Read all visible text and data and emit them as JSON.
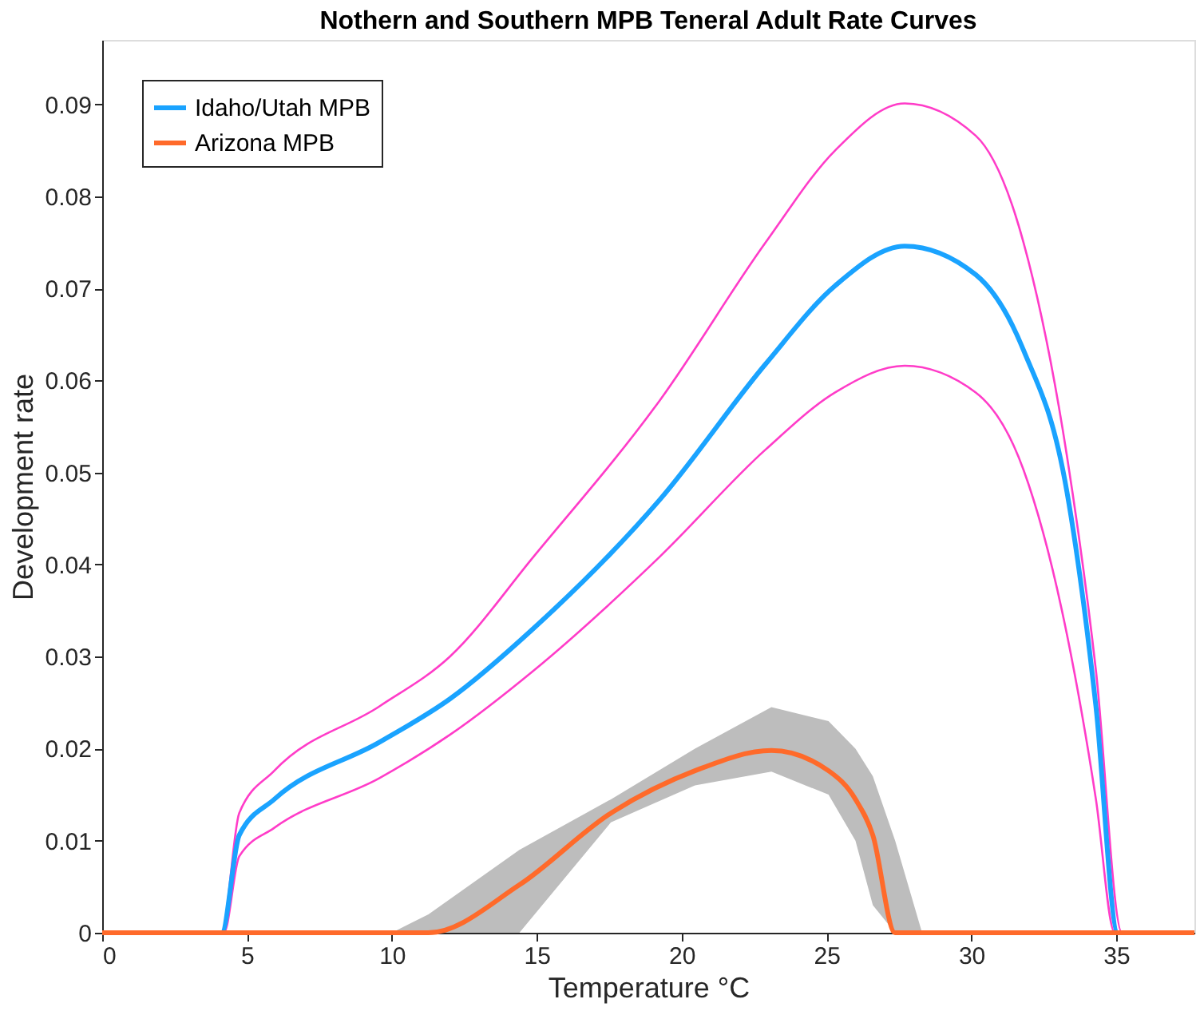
{
  "chart_data": {
    "type": "line",
    "title": "Nothern and Southern MPB Teneral Adult Rate Curves",
    "xlabel": "Temperature °C",
    "ylabel": "Development rate",
    "xlim": [
      0,
      37.7
    ],
    "ylim": [
      0,
      0.097
    ],
    "xticks": [
      0,
      5,
      10,
      15,
      20,
      25,
      30,
      35
    ],
    "yticks": [
      0,
      0.01,
      0.02,
      0.03,
      0.04,
      0.05,
      0.06,
      0.07,
      0.08,
      0.09
    ],
    "grid": false,
    "legend": "top left",
    "marker": "none",
    "line_style": "solid",
    "series": [
      {
        "color": "#ff3cc8",
        "x": [
          0,
          4.12,
          4.73,
          5.94,
          9.57,
          12.0,
          14.9,
          19.26,
          22.9,
          25.3,
          27.7,
          30.15,
          31.8,
          33.3,
          34.3,
          35.2,
          37.7
        ],
        "values": [
          0,
          0,
          0.013,
          0.0176,
          0.0246,
          0.03,
          0.0409,
          0.0579,
          0.075,
          0.085,
          0.0901,
          0.0866,
          0.075,
          0.0518,
          0.0285,
          0,
          0
        ]
      },
      {
        "color": "#ff3cc8",
        "x": [
          0,
          4.2,
          4.73,
          5.94,
          9.57,
          12.0,
          14.9,
          19.26,
          22.9,
          25.3,
          27.7,
          30.15,
          31.8,
          33.3,
          34.3,
          34.95,
          37.7
        ],
        "values": [
          0,
          0,
          0.0083,
          0.0114,
          0.0168,
          0.0215,
          0.0285,
          0.0409,
          0.0525,
          0.0587,
          0.0616,
          0.0587,
          0.0503,
          0.0324,
          0.0145,
          0,
          0
        ]
      },
      {
        "name": "Idaho/Utah MPB",
        "color": "#1aa3ff",
        "x": [
          0,
          4.12,
          4.73,
          5.94,
          9.57,
          12.0,
          14.9,
          19.26,
          22.9,
          25.3,
          27.7,
          30.15,
          31.8,
          33.3,
          34.3,
          35.06,
          37.7
        ],
        "values": [
          0,
          0,
          0.0106,
          0.0145,
          0.0207,
          0.0254,
          0.0331,
          0.0471,
          0.0618,
          0.0703,
          0.0746,
          0.0715,
          0.0633,
          0.0479,
          0.0246,
          0,
          0
        ]
      },
      {
        "name": "Arizona MPB",
        "color": "#ff6a2a",
        "x": [
          0,
          10.0,
          11.26,
          14.4,
          17.56,
          20.46,
          23.1,
          25.07,
          26.0,
          26.6,
          27.37,
          28.3,
          37.7
        ],
        "values": [
          0,
          0,
          0,
          0.0052,
          0.013,
          0.0176,
          0.0198,
          0.0176,
          0.0145,
          0.0106,
          0,
          0,
          0
        ],
        "lower": [
          0,
          0,
          0,
          0,
          0.012,
          0.016,
          0.0175,
          0.015,
          0.01,
          0.003,
          0,
          0,
          0
        ],
        "upper": [
          0,
          0,
          0.002,
          0.009,
          0.0145,
          0.02,
          0.0245,
          0.023,
          0.02,
          0.017,
          0.01,
          0,
          0
        ]
      }
    ]
  }
}
